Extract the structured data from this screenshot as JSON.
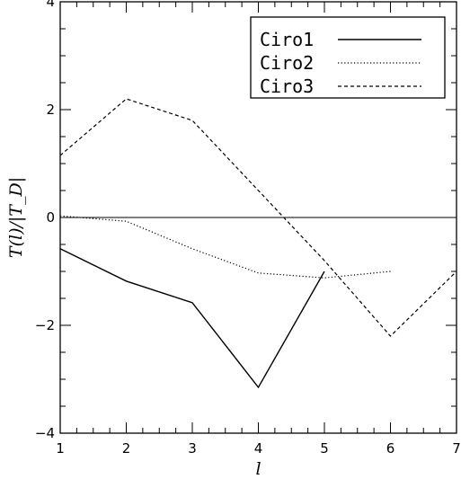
{
  "chart_data": {
    "type": "line",
    "x": [
      1,
      2,
      3,
      4,
      5,
      6,
      7
    ],
    "xlim": [
      1,
      7
    ],
    "ylim": [
      -4,
      4
    ],
    "xticks": [
      "1",
      "2",
      "3",
      "4",
      "5",
      "6",
      "7"
    ],
    "yticks": [
      "−4",
      "−2",
      "0",
      "2",
      "4"
    ],
    "xlabel": "l",
    "ylabel": "T(l)/|T_D|",
    "grid": false,
    "legend_position": "top-right",
    "reference_line_y": 0,
    "series": [
      {
        "name": "Ciro1",
        "style": "solid",
        "x": [
          1,
          2,
          3,
          4,
          5
        ],
        "values": [
          -0.58,
          -1.18,
          -1.58,
          -3.15,
          -1.0
        ]
      },
      {
        "name": "Ciro2",
        "style": "dotted",
        "x": [
          1,
          2,
          3,
          4,
          5,
          6
        ],
        "values": [
          0.03,
          -0.07,
          -0.58,
          -1.03,
          -1.12,
          -1.0
        ]
      },
      {
        "name": "Ciro3",
        "style": "dashed",
        "x": [
          1,
          2,
          3,
          4,
          5,
          6,
          7
        ],
        "values": [
          1.15,
          2.2,
          1.8,
          0.5,
          -0.8,
          -2.2,
          -1.0
        ]
      }
    ]
  }
}
